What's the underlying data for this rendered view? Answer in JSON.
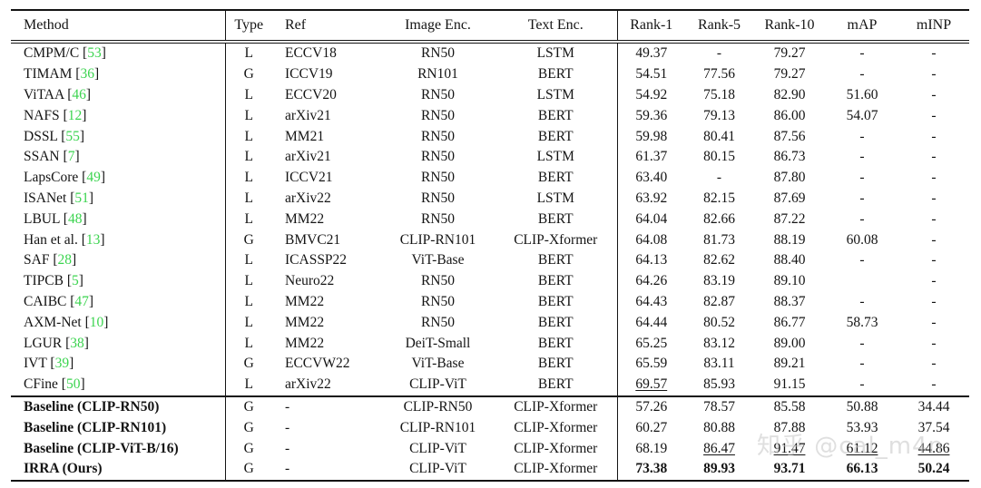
{
  "table": {
    "columns": [
      "Method",
      "Type",
      "Ref",
      "Image Enc.",
      "Text Enc.",
      "Rank-1",
      "Rank-5",
      "Rank-10",
      "mAP",
      "mINP"
    ],
    "rows": [
      {
        "method": "CMPM/C",
        "cite": "53",
        "type": "L",
        "ref": "ECCV18",
        "image_enc": "RN50",
        "text_enc": "LSTM",
        "r1": "49.37",
        "r5": "-",
        "r10": "79.27",
        "map": "-",
        "minp": "-",
        "bold_method": false,
        "bold_metrics": [],
        "underline_metrics": [],
        "section_start": false
      },
      {
        "method": "TIMAM",
        "cite": "36",
        "type": "G",
        "ref": "ICCV19",
        "image_enc": "RN101",
        "text_enc": "BERT",
        "r1": "54.51",
        "r5": "77.56",
        "r10": "79.27",
        "map": "-",
        "minp": "-",
        "bold_method": false,
        "bold_metrics": [],
        "underline_metrics": [],
        "section_start": false
      },
      {
        "method": "ViTAA",
        "cite": "46",
        "type": "L",
        "ref": "ECCV20",
        "image_enc": "RN50",
        "text_enc": "LSTM",
        "r1": "54.92",
        "r5": "75.18",
        "r10": "82.90",
        "map": "51.60",
        "minp": "-",
        "bold_method": false,
        "bold_metrics": [],
        "underline_metrics": [],
        "section_start": false
      },
      {
        "method": "NAFS",
        "cite": "12",
        "type": "L",
        "ref": "arXiv21",
        "image_enc": "RN50",
        "text_enc": "BERT",
        "r1": "59.36",
        "r5": "79.13",
        "r10": "86.00",
        "map": "54.07",
        "minp": "-",
        "bold_method": false,
        "bold_metrics": [],
        "underline_metrics": [],
        "section_start": false
      },
      {
        "method": "DSSL",
        "cite": "55",
        "type": "L",
        "ref": "MM21",
        "image_enc": "RN50",
        "text_enc": "BERT",
        "r1": "59.98",
        "r5": "80.41",
        "r10": "87.56",
        "map": "-",
        "minp": "-",
        "bold_method": false,
        "bold_metrics": [],
        "underline_metrics": [],
        "section_start": false
      },
      {
        "method": "SSAN",
        "cite": "7",
        "type": "L",
        "ref": "arXiv21",
        "image_enc": "RN50",
        "text_enc": "LSTM",
        "r1": "61.37",
        "r5": "80.15",
        "r10": "86.73",
        "map": "-",
        "minp": "-",
        "bold_method": false,
        "bold_metrics": [],
        "underline_metrics": [],
        "section_start": false
      },
      {
        "method": "LapsCore",
        "cite": "49",
        "type": "L",
        "ref": "ICCV21",
        "image_enc": "RN50",
        "text_enc": "BERT",
        "r1": "63.40",
        "r5": "-",
        "r10": "87.80",
        "map": "-",
        "minp": "-",
        "bold_method": false,
        "bold_metrics": [],
        "underline_metrics": [],
        "section_start": false
      },
      {
        "method": "ISANet",
        "cite": "51",
        "type": "L",
        "ref": "arXiv22",
        "image_enc": "RN50",
        "text_enc": "LSTM",
        "r1": "63.92",
        "r5": "82.15",
        "r10": "87.69",
        "map": "-",
        "minp": "-",
        "bold_method": false,
        "bold_metrics": [],
        "underline_metrics": [],
        "section_start": false
      },
      {
        "method": "LBUL",
        "cite": "48",
        "type": "L",
        "ref": "MM22",
        "image_enc": "RN50",
        "text_enc": "BERT",
        "r1": "64.04",
        "r5": "82.66",
        "r10": "87.22",
        "map": "-",
        "minp": "-",
        "bold_method": false,
        "bold_metrics": [],
        "underline_metrics": [],
        "section_start": false
      },
      {
        "method": "Han et al.",
        "cite": "13",
        "type": "G",
        "ref": "BMVC21",
        "image_enc": "CLIP-RN101",
        "text_enc": "CLIP-Xformer",
        "r1": "64.08",
        "r5": "81.73",
        "r10": "88.19",
        "map": "60.08",
        "minp": "-",
        "bold_method": false,
        "bold_metrics": [],
        "underline_metrics": [],
        "section_start": false
      },
      {
        "method": "SAF",
        "cite": "28",
        "type": "L",
        "ref": "ICASSP22",
        "image_enc": "ViT-Base",
        "text_enc": "BERT",
        "r1": "64.13",
        "r5": "82.62",
        "r10": "88.40",
        "map": "-",
        "minp": "-",
        "bold_method": false,
        "bold_metrics": [],
        "underline_metrics": [],
        "section_start": false
      },
      {
        "method": "TIPCB",
        "cite": "5",
        "type": "L",
        "ref": "Neuro22",
        "image_enc": "RN50",
        "text_enc": "BERT",
        "r1": "64.26",
        "r5": "83.19",
        "r10": "89.10",
        "map": "",
        "minp": "-",
        "bold_method": false,
        "bold_metrics": [],
        "underline_metrics": [],
        "section_start": false
      },
      {
        "method": "CAIBC",
        "cite": "47",
        "type": "L",
        "ref": "MM22",
        "image_enc": "RN50",
        "text_enc": "BERT",
        "r1": "64.43",
        "r5": "82.87",
        "r10": "88.37",
        "map": "-",
        "minp": "-",
        "bold_method": false,
        "bold_metrics": [],
        "underline_metrics": [],
        "section_start": false
      },
      {
        "method": "AXM-Net",
        "cite": "10",
        "type": "L",
        "ref": "MM22",
        "image_enc": "RN50",
        "text_enc": "BERT",
        "r1": "64.44",
        "r5": "80.52",
        "r10": "86.77",
        "map": "58.73",
        "minp": "-",
        "bold_method": false,
        "bold_metrics": [],
        "underline_metrics": [],
        "section_start": false
      },
      {
        "method": "LGUR",
        "cite": "38",
        "type": "L",
        "ref": "MM22",
        "image_enc": "DeiT-Small",
        "text_enc": "BERT",
        "r1": "65.25",
        "r5": "83.12",
        "r10": "89.00",
        "map": "-",
        "minp": "-",
        "bold_method": false,
        "bold_metrics": [],
        "underline_metrics": [],
        "section_start": false
      },
      {
        "method": "IVT",
        "cite": "39",
        "type": "G",
        "ref": "ECCVW22",
        "image_enc": "ViT-Base",
        "text_enc": "BERT",
        "r1": "65.59",
        "r5": "83.11",
        "r10": "89.21",
        "map": "-",
        "minp": "-",
        "bold_method": false,
        "bold_metrics": [],
        "underline_metrics": [],
        "section_start": false
      },
      {
        "method": "CFine",
        "cite": "50",
        "type": "L",
        "ref": "arXiv22",
        "image_enc": "CLIP-ViT",
        "text_enc": "BERT",
        "r1": "69.57",
        "r5": "85.93",
        "r10": "91.15",
        "map": "-",
        "minp": "-",
        "bold_method": false,
        "bold_metrics": [],
        "underline_metrics": [
          "r1"
        ],
        "section_start": false
      },
      {
        "method": "Baseline (CLIP-RN50)",
        "cite": null,
        "type": "G",
        "ref": "-",
        "image_enc": "CLIP-RN50",
        "text_enc": "CLIP-Xformer",
        "r1": "57.26",
        "r5": "78.57",
        "r10": "85.58",
        "map": "50.88",
        "minp": "34.44",
        "bold_method": true,
        "bold_metrics": [],
        "underline_metrics": [],
        "section_start": true
      },
      {
        "method": "Baseline (CLIP-RN101)",
        "cite": null,
        "type": "G",
        "ref": "-",
        "image_enc": "CLIP-RN101",
        "text_enc": "CLIP-Xformer",
        "r1": "60.27",
        "r5": "80.88",
        "r10": "87.88",
        "map": "53.93",
        "minp": "37.54",
        "bold_method": true,
        "bold_metrics": [],
        "underline_metrics": [],
        "section_start": false
      },
      {
        "method": "Baseline (CLIP-ViT-B/16)",
        "cite": null,
        "type": "G",
        "ref": "-",
        "image_enc": "CLIP-ViT",
        "text_enc": "CLIP-Xformer",
        "r1": "68.19",
        "r5": "86.47",
        "r10": "91.47",
        "map": "61.12",
        "minp": "44.86",
        "bold_method": true,
        "bold_metrics": [],
        "underline_metrics": [
          "r5",
          "r10",
          "map",
          "minp"
        ],
        "section_start": false
      },
      {
        "method": "IRRA (Ours)",
        "cite": null,
        "type": "G",
        "ref": "-",
        "image_enc": "CLIP-ViT",
        "text_enc": "CLIP-Xformer",
        "r1": "73.38",
        "r5": "89.93",
        "r10": "93.71",
        "map": "66.13",
        "minp": "50.24",
        "bold_method": true,
        "bold_metrics": [
          "r1",
          "r5",
          "r10",
          "map",
          "minp"
        ],
        "underline_metrics": [],
        "section_start": false
      }
    ]
  },
  "watermark": {
    "text": "知乎 @cal_m4n"
  },
  "colors": {
    "citation_green": "#3bd44f",
    "watermark_gray": "#c6c6c6",
    "rule_black": "#141414"
  }
}
